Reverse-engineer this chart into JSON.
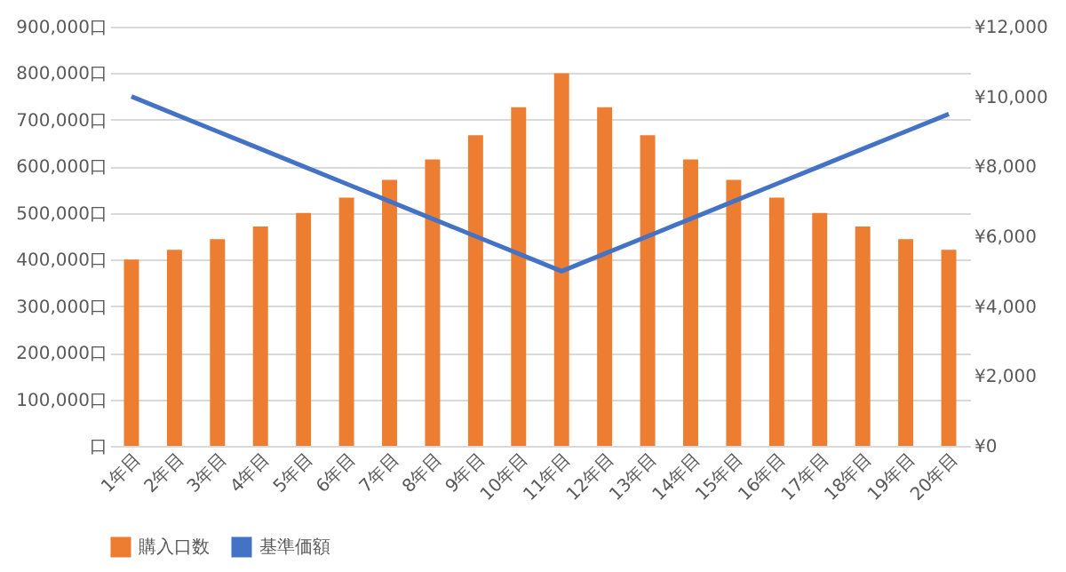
{
  "chart_data": {
    "type": "bar",
    "categories": [
      "1年目",
      "2年目",
      "3年目",
      "4年目",
      "5年目",
      "6年目",
      "7年目",
      "8年目",
      "9年目",
      "10年目",
      "11年目",
      "12年目",
      "13年目",
      "14年目",
      "15年目",
      "16年目",
      "17年目",
      "18年目",
      "19年目",
      "20年目"
    ],
    "series": [
      {
        "name": "購入口数",
        "color": "#ed7d31",
        "values": [
          400000,
          421000,
          444000,
          471000,
          500000,
          533000,
          571000,
          615000,
          667000,
          727000,
          800000,
          727000,
          667000,
          615000,
          571000,
          533000,
          500000,
          471000,
          444000,
          421000
        ]
      },
      {
        "name": "基準価額",
        "type": "line",
        "axis": "y2",
        "color": "#4472c4",
        "values": [
          10000,
          9500,
          9000,
          8500,
          8000,
          7500,
          7000,
          6500,
          6000,
          5500,
          5000,
          5500,
          6000,
          6500,
          7000,
          7500,
          8000,
          8500,
          9000,
          9500
        ]
      }
    ],
    "ylim": [
      0,
      900000
    ],
    "yticks": [
      {
        "value": 0,
        "label": "口"
      },
      {
        "value": 100000,
        "label": "100,000口"
      },
      {
        "value": 200000,
        "label": "200,000口"
      },
      {
        "value": 300000,
        "label": "300,000口"
      },
      {
        "value": 400000,
        "label": "400,000口"
      },
      {
        "value": 500000,
        "label": "500,000口"
      },
      {
        "value": 600000,
        "label": "600,000口"
      },
      {
        "value": 700000,
        "label": "700,000口"
      },
      {
        "value": 800000,
        "label": "800,000口"
      },
      {
        "value": 900000,
        "label": "900,000口"
      }
    ],
    "y2lim": [
      0,
      12000
    ],
    "y2ticks": [
      {
        "value": 0,
        "label": "¥0"
      },
      {
        "value": 2000,
        "label": "¥2,000"
      },
      {
        "value": 4000,
        "label": "¥4,000"
      },
      {
        "value": 6000,
        "label": "¥6,000"
      },
      {
        "value": 8000,
        "label": "¥8,000"
      },
      {
        "value": 10000,
        "label": "¥10,000"
      },
      {
        "value": 12000,
        "label": "¥12,000"
      }
    ],
    "grid": "y",
    "legend": "bottom"
  }
}
